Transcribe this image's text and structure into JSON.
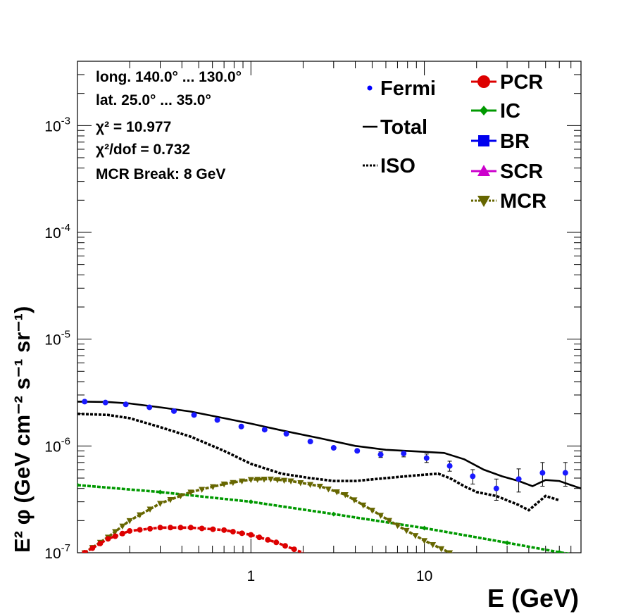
{
  "chart_data": {
    "type": "line",
    "xlabel": "E (GeV)",
    "ylabel": "E² φ (GeV cm⁻² s⁻¹ sr⁻¹)",
    "x_scale": "log",
    "y_scale": "log",
    "xlim": [
      0.1,
      80
    ],
    "ylim": [
      1e-07,
      0.004
    ],
    "x_tick_labels": [
      {
        "value": 1,
        "label": "1"
      },
      {
        "value": 10,
        "label": "10"
      }
    ],
    "y_tick_labels": [
      {
        "value": 1e-07,
        "mant": "10",
        "exp": "-7"
      },
      {
        "value": 1e-06,
        "mant": "10",
        "exp": "-6"
      },
      {
        "value": 1e-05,
        "mant": "10",
        "exp": "-5"
      },
      {
        "value": 0.0001,
        "mant": "10",
        "exp": "-4"
      },
      {
        "value": 0.001,
        "mant": "10",
        "exp": "-3"
      }
    ],
    "info_lines": [
      "long. 140.0° ... 130.0°",
      "lat. 25.0° ... 35.0°",
      "χ² = 10.977",
      "χ²/dof = 0.732",
      "MCR Break:  8 GeV"
    ],
    "legend": {
      "left": [
        {
          "label": "Fermi",
          "color": "#0000ff",
          "style": "point"
        },
        {
          "label": "Total",
          "color": "#000000",
          "style": "solid"
        },
        {
          "label": "ISO",
          "color": "#000000",
          "style": "dotted"
        }
      ],
      "right": [
        {
          "label": "PCR",
          "color": "#dd0000",
          "style": "circle"
        },
        {
          "label": "IC",
          "color": "#009900",
          "style": "diamond"
        },
        {
          "label": "BR",
          "color": "#0000ee",
          "style": "square"
        },
        {
          "label": "SCR",
          "color": "#cc00cc",
          "style": "triangle-up"
        },
        {
          "label": "MCR",
          "color": "#666600",
          "style": "triangle-down"
        }
      ]
    },
    "fermi": {
      "x": [
        0.11,
        0.145,
        0.19,
        0.26,
        0.36,
        0.47,
        0.64,
        0.88,
        1.2,
        1.6,
        2.2,
        3.0,
        4.1,
        5.6,
        7.6,
        10.3,
        14,
        19,
        26,
        35,
        48,
        65
      ],
      "y": [
        2.6e-06,
        2.55e-06,
        2.45e-06,
        2.3e-06,
        2.12e-06,
        1.95e-06,
        1.75e-06,
        1.52e-06,
        1.42e-06,
        1.3e-06,
        1.1e-06,
        9.6e-07,
        9e-07,
        8.3e-07,
        8.5e-07,
        7.7e-07,
        6.5e-07,
        5.2e-07,
        4e-07,
        4.9e-07,
        5.6e-07,
        5.6e-07
      ],
      "err": [
        3e-08,
        3e-08,
        3e-08,
        3e-08,
        3e-08,
        3e-08,
        3e-08,
        3e-08,
        3e-08,
        3e-08,
        3e-08,
        3e-08,
        3e-08,
        5e-08,
        6e-08,
        7e-08,
        7e-08,
        8e-08,
        9e-08,
        1.2e-07,
        1.4e-07,
        1.4e-07
      ]
    },
    "series": [
      {
        "name": "Total",
        "color": "#000000",
        "style": "solid",
        "x": [
          0.1,
          0.15,
          0.2,
          0.3,
          0.45,
          0.7,
          1.0,
          1.5,
          2.5,
          4,
          6,
          10,
          13,
          17,
          22,
          28,
          35,
          42,
          50,
          60,
          70,
          80
        ],
        "y": [
          2.6e-06,
          2.58e-06,
          2.5e-06,
          2.3e-06,
          2.1e-06,
          1.82e-06,
          1.62e-06,
          1.4e-06,
          1.18e-06,
          1e-06,
          9.2e-07,
          8.8e-07,
          8.6e-07,
          7.5e-07,
          6e-07,
          5.2e-07,
          4.7e-07,
          4.2e-07,
          4.8e-07,
          4.7e-07,
          4.3e-07,
          4e-07
        ]
      },
      {
        "name": "ISO",
        "color": "#000000",
        "style": "dotted",
        "x": [
          0.1,
          0.15,
          0.2,
          0.3,
          0.45,
          0.7,
          1.0,
          1.5,
          2.2,
          3.0,
          4.0,
          6,
          9,
          12,
          14,
          17,
          20,
          26,
          35,
          40,
          50,
          60
        ],
        "y": [
          2e-06,
          1.95e-06,
          1.82e-06,
          1.5e-06,
          1.22e-06,
          9e-07,
          6.8e-07,
          5.5e-07,
          5e-07,
          4.7e-07,
          4.7e-07,
          5e-07,
          5.3e-07,
          5.5e-07,
          5e-07,
          4.2e-07,
          3.7e-07,
          3.4e-07,
          2.8e-07,
          2.5e-07,
          3.4e-07,
          3.1e-07
        ]
      },
      {
        "name": "IC",
        "color": "#009900",
        "style": "dashed",
        "x": [
          0.1,
          0.3,
          1,
          3,
          10,
          30,
          60,
          80
        ],
        "y": [
          4.3e-07,
          3.7e-07,
          3e-07,
          2.3e-07,
          1.7e-07,
          1.24e-07,
          1.01e-07,
          9.4e-08
        ]
      },
      {
        "name": "MCR",
        "color": "#666600",
        "style": "dashed",
        "x": [
          0.11,
          0.15,
          0.2,
          0.3,
          0.45,
          0.7,
          1.0,
          1.3,
          1.7,
          2.5,
          3.5,
          5,
          7,
          10,
          14,
          18
        ],
        "y": [
          1e-07,
          1.4e-07,
          2e-07,
          2.9e-07,
          3.7e-07,
          4.4e-07,
          4.85e-07,
          4.9e-07,
          4.7e-07,
          4.2e-07,
          3.5e-07,
          2.5e-07,
          1.8e-07,
          1.3e-07,
          1e-07,
          8.5e-08
        ]
      },
      {
        "name": "PCR",
        "color": "#dd0000",
        "style": "dashed",
        "x": [
          0.11,
          0.15,
          0.2,
          0.3,
          0.45,
          0.7,
          1.0,
          1.4,
          2.0
        ],
        "y": [
          1e-07,
          1.35e-07,
          1.6e-07,
          1.72e-07,
          1.72e-07,
          1.63e-07,
          1.47e-07,
          1.25e-07,
          1e-07
        ]
      }
    ]
  }
}
